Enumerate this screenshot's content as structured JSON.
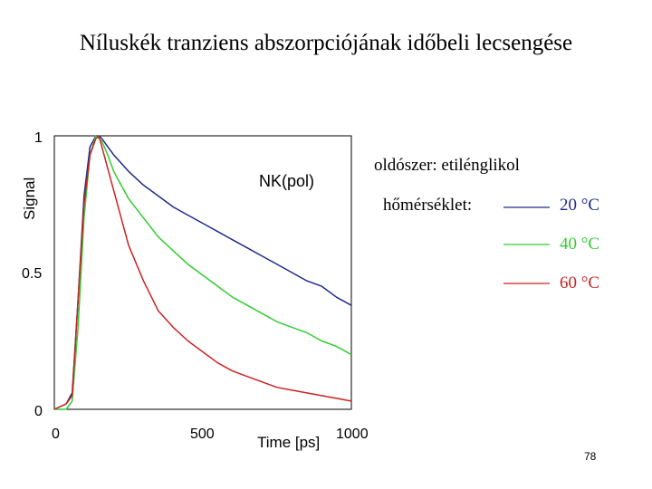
{
  "slide": {
    "title": "Níluskék tranziens abszorpciójának időbeli lecsengése",
    "page_number": "78"
  },
  "colors": {
    "20C": "#1f2a8c",
    "40C": "#33cc33",
    "60C": "#cc2222"
  },
  "chart_data": {
    "type": "line",
    "title": "",
    "xlabel": "Time [ps]",
    "ylabel": "Signal",
    "xlim": [
      0,
      1000
    ],
    "ylim": [
      0,
      1
    ],
    "xticks": [
      "0",
      "500",
      "1000"
    ],
    "yticks": [
      "0",
      "0.5",
      "1"
    ],
    "annotation": "NK(pol)",
    "grid": false,
    "series": [
      {
        "name": "20 °C",
        "color": "#1f2a8c",
        "x": [
          0,
          40,
          60,
          80,
          100,
          120,
          140,
          150,
          160,
          180,
          200,
          250,
          300,
          350,
          400,
          450,
          500,
          550,
          600,
          650,
          700,
          750,
          800,
          850,
          900,
          950,
          1000
        ],
        "y": [
          0.0,
          0.02,
          0.06,
          0.4,
          0.78,
          0.96,
          1.0,
          1.0,
          0.99,
          0.96,
          0.93,
          0.87,
          0.82,
          0.78,
          0.74,
          0.71,
          0.68,
          0.65,
          0.62,
          0.59,
          0.56,
          0.53,
          0.5,
          0.47,
          0.45,
          0.41,
          0.38
        ]
      },
      {
        "name": "40 °C",
        "color": "#33cc33",
        "x": [
          0,
          40,
          60,
          80,
          100,
          120,
          140,
          160,
          180,
          200,
          250,
          300,
          350,
          400,
          450,
          500,
          550,
          600,
          650,
          700,
          750,
          800,
          850,
          900,
          950,
          1000
        ],
        "y": [
          0.0,
          0.0,
          0.03,
          0.3,
          0.7,
          0.93,
          1.0,
          0.98,
          0.93,
          0.87,
          0.77,
          0.7,
          0.63,
          0.58,
          0.53,
          0.49,
          0.45,
          0.41,
          0.38,
          0.35,
          0.32,
          0.3,
          0.28,
          0.25,
          0.23,
          0.2
        ]
      },
      {
        "name": "60 °C",
        "color": "#cc2222",
        "x": [
          0,
          40,
          60,
          80,
          100,
          120,
          140,
          150,
          160,
          180,
          200,
          250,
          300,
          350,
          400,
          450,
          500,
          550,
          600,
          650,
          700,
          750,
          800,
          850,
          900,
          950,
          1000
        ],
        "y": [
          0.0,
          0.02,
          0.05,
          0.4,
          0.75,
          0.93,
          0.99,
          1.0,
          0.96,
          0.88,
          0.8,
          0.6,
          0.47,
          0.36,
          0.3,
          0.25,
          0.21,
          0.17,
          0.14,
          0.12,
          0.1,
          0.08,
          0.07,
          0.06,
          0.05,
          0.04,
          0.03
        ]
      }
    ]
  },
  "legend": {
    "solvent": "oldószer: etilénglikol",
    "temperature_label": "hőmérséklet:",
    "entries": [
      "20 °C",
      "40 °C",
      "60 °C"
    ]
  }
}
